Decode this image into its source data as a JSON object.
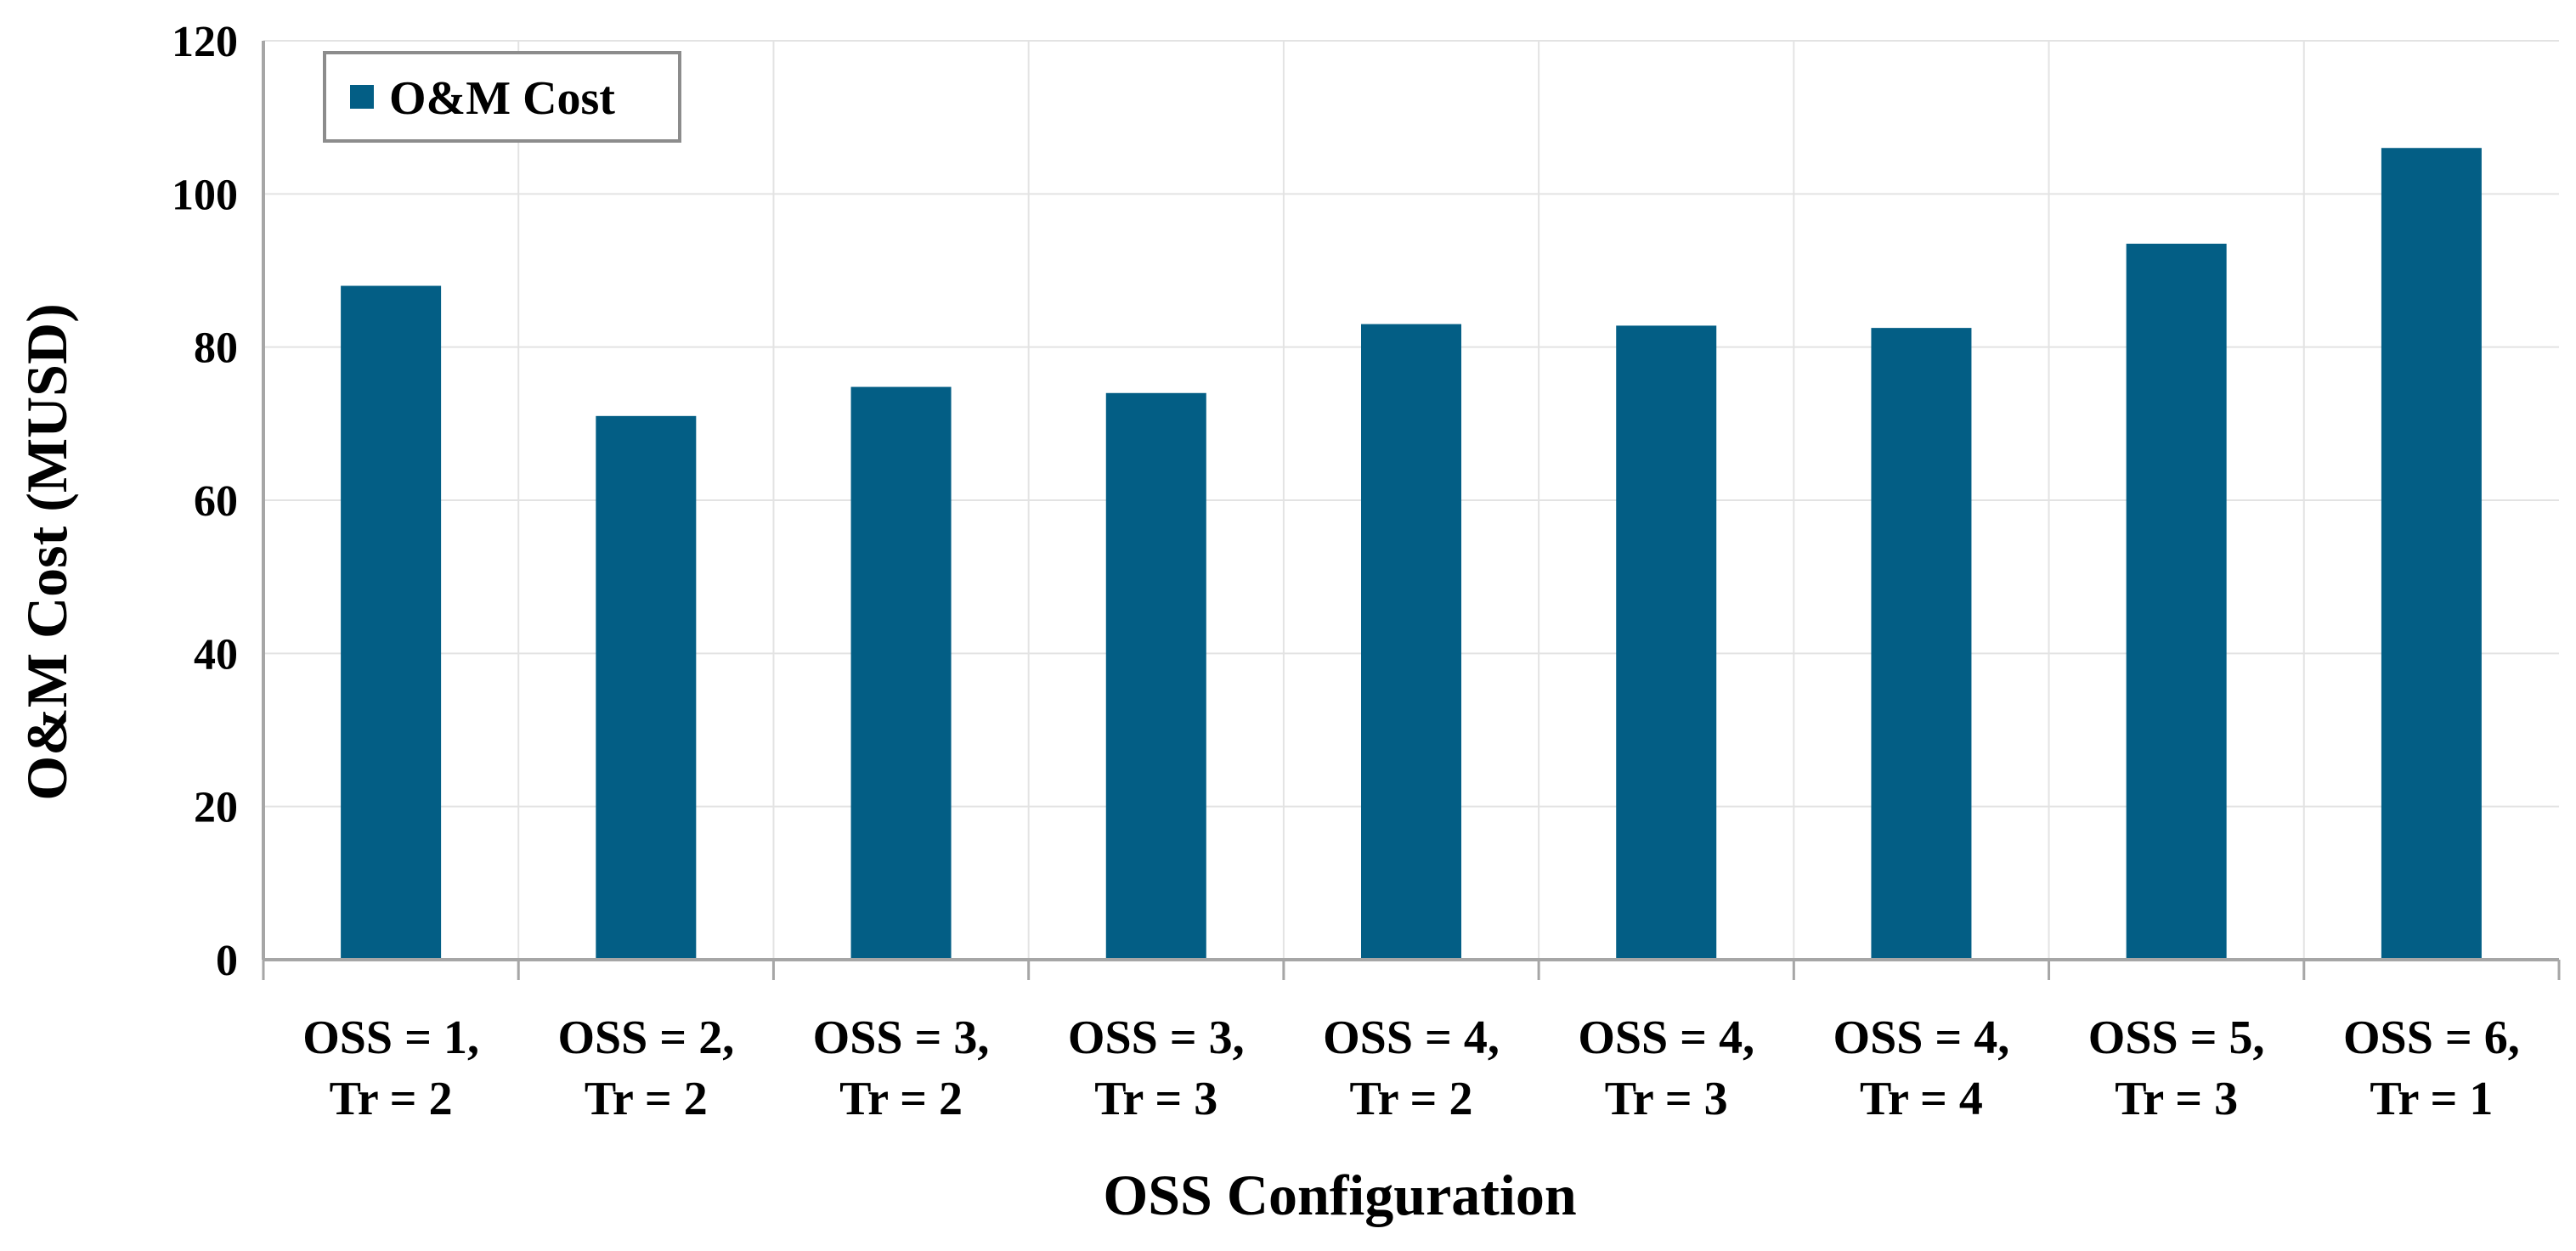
{
  "chart_data": {
    "type": "bar",
    "title": "",
    "xlabel": "OSS Configuration",
    "ylabel": "O&M Cost (MUSD)",
    "ylim": [
      0,
      120
    ],
    "yticks": [
      0,
      20,
      40,
      60,
      80,
      100,
      120
    ],
    "grid": true,
    "legend_position": "top-left",
    "categories": [
      [
        "OSS = 1,",
        "Tr = 2"
      ],
      [
        "OSS = 2,",
        "Tr = 2"
      ],
      [
        "OSS = 3,",
        "Tr = 2"
      ],
      [
        "OSS = 3,",
        "Tr = 3"
      ],
      [
        "OSS = 4,",
        "Tr = 2"
      ],
      [
        "OSS = 4,",
        "Tr = 3"
      ],
      [
        "OSS = 4,",
        "Tr = 4"
      ],
      [
        "OSS = 5,",
        "Tr = 3"
      ],
      [
        "OSS = 6,",
        "Tr = 1"
      ]
    ],
    "series": [
      {
        "name": "O&M Cost",
        "color": "#035e85",
        "values": [
          88,
          71,
          74.8,
          74,
          83,
          82.8,
          82.5,
          93.5,
          106
        ]
      }
    ]
  }
}
